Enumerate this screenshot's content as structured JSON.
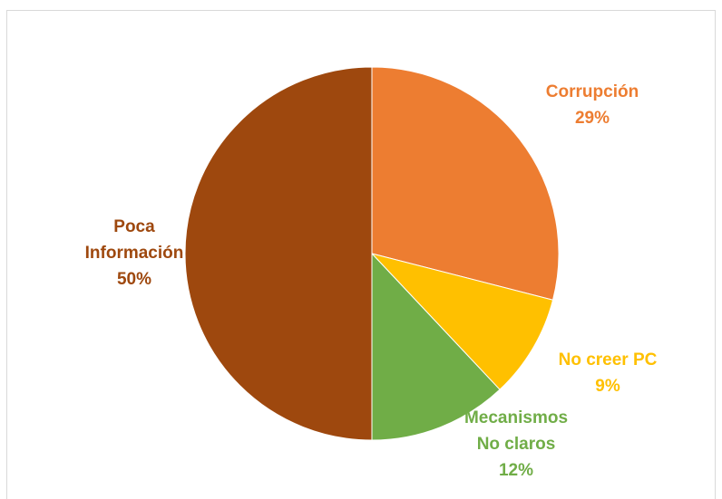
{
  "chart_data": {
    "type": "pie",
    "title": "",
    "slices": [
      {
        "label": [
          "Corrupción"
        ],
        "percent_label": "29%",
        "value": 29,
        "color": "#ED7D31"
      },
      {
        "label": [
          "No creer PC"
        ],
        "percent_label": "9%",
        "value": 9,
        "color": "#FFC000"
      },
      {
        "label": [
          "Mecanismos",
          "No claros"
        ],
        "percent_label": "12%",
        "value": 12,
        "color": "#70AD47"
      },
      {
        "label": [
          "Poca",
          "Información"
        ],
        "percent_label": "50%",
        "value": 50,
        "color": "#9E480E"
      }
    ],
    "legend": "none"
  }
}
